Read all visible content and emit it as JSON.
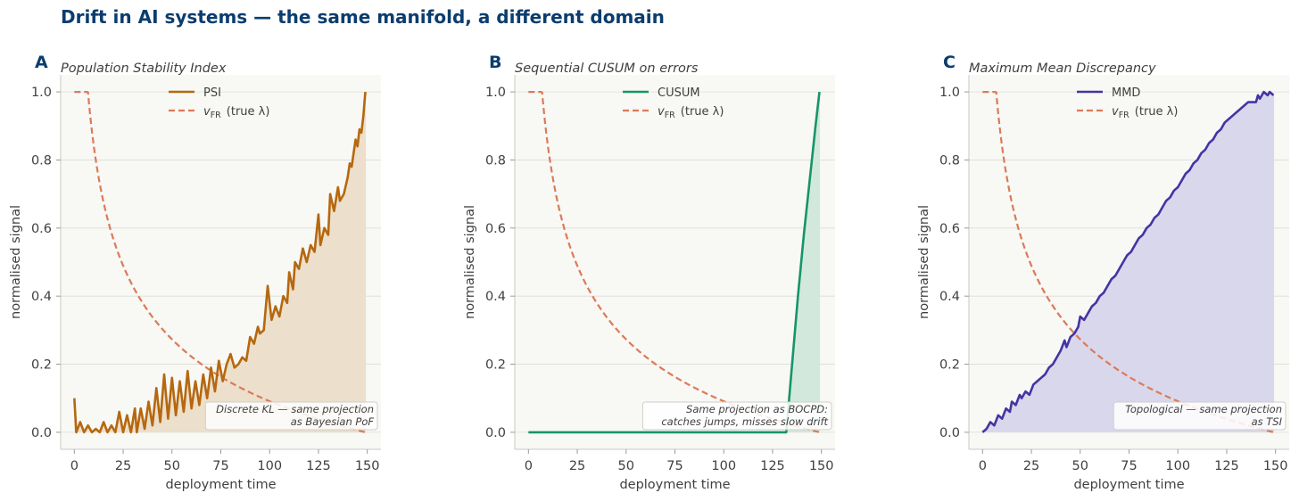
{
  "suptitle": "Drift in AI systems — the same manifold, a different domain",
  "colors": {
    "ref": "#dc7a58",
    "grid": "#dcdcd6",
    "plot_bg": "#f8f8f5",
    "spine": "#c9c9c2"
  },
  "chart_data": [
    {
      "letter": "A",
      "type": "line",
      "title": "Population Stability Index",
      "xlabel": "deployment time",
      "ylabel": "normalised signal",
      "xlim": [
        -7,
        157
      ],
      "ylim": [
        -0.05,
        1.05
      ],
      "xticks": [
        0,
        25,
        50,
        75,
        100,
        125,
        150
      ],
      "xtick_labels": [
        "0",
        "25",
        "50",
        "75",
        "100",
        "125",
        "150"
      ],
      "yticks": [
        0.0,
        0.2,
        0.4,
        0.6,
        0.8,
        1.0
      ],
      "ytick_labels": [
        "0.0",
        "0.2",
        "0.4",
        "0.6",
        "0.8",
        "1.0"
      ],
      "grid": "horizontal",
      "legend": {
        "placement": "upper-center",
        "main": "PSI",
        "ref_prefix": "v",
        "ref_sub": "FR",
        "ref_suffix": "(true λ)"
      },
      "annotation": [
        "Discrete KL — same projection",
        "as Bayesian PoF"
      ],
      "series": [
        {
          "name": "PSI",
          "color": "#b5680f",
          "fill": "#ecdfcb",
          "points": [
            [
              0,
              0.1
            ],
            [
              1,
              0.0
            ],
            [
              3,
              0.03
            ],
            [
              5,
              0.0
            ],
            [
              7,
              0.02
            ],
            [
              9,
              0.0
            ],
            [
              11,
              0.01
            ],
            [
              13,
              0.0
            ],
            [
              15,
              0.03
            ],
            [
              17,
              0.0
            ],
            [
              19,
              0.02
            ],
            [
              21,
              0.0
            ],
            [
              23,
              0.06
            ],
            [
              25,
              0.0
            ],
            [
              27,
              0.05
            ],
            [
              29,
              0.0
            ],
            [
              31,
              0.07
            ],
            [
              32,
              0.0
            ],
            [
              34,
              0.07
            ],
            [
              36,
              0.01
            ],
            [
              38,
              0.09
            ],
            [
              40,
              0.02
            ],
            [
              42,
              0.13
            ],
            [
              44,
              0.03
            ],
            [
              46,
              0.17
            ],
            [
              48,
              0.04
            ],
            [
              50,
              0.16
            ],
            [
              52,
              0.05
            ],
            [
              54,
              0.15
            ],
            [
              56,
              0.06
            ],
            [
              58,
              0.18
            ],
            [
              60,
              0.07
            ],
            [
              62,
              0.15
            ],
            [
              64,
              0.08
            ],
            [
              66,
              0.17
            ],
            [
              68,
              0.1
            ],
            [
              70,
              0.19
            ],
            [
              72,
              0.12
            ],
            [
              74,
              0.21
            ],
            [
              76,
              0.15
            ],
            [
              78,
              0.2
            ],
            [
              80,
              0.23
            ],
            [
              82,
              0.19
            ],
            [
              84,
              0.2
            ],
            [
              86,
              0.22
            ],
            [
              88,
              0.21
            ],
            [
              90,
              0.28
            ],
            [
              92,
              0.26
            ],
            [
              94,
              0.31
            ],
            [
              95,
              0.29
            ],
            [
              97,
              0.3
            ],
            [
              99,
              0.43
            ],
            [
              101,
              0.33
            ],
            [
              103,
              0.37
            ],
            [
              105,
              0.34
            ],
            [
              107,
              0.4
            ],
            [
              109,
              0.38
            ],
            [
              110,
              0.47
            ],
            [
              112,
              0.42
            ],
            [
              113,
              0.5
            ],
            [
              115,
              0.48
            ],
            [
              117,
              0.54
            ],
            [
              119,
              0.5
            ],
            [
              121,
              0.55
            ],
            [
              123,
              0.53
            ],
            [
              125,
              0.64
            ],
            [
              126,
              0.55
            ],
            [
              128,
              0.6
            ],
            [
              130,
              0.58
            ],
            [
              131,
              0.7
            ],
            [
              133,
              0.65
            ],
            [
              135,
              0.72
            ],
            [
              136,
              0.68
            ],
            [
              138,
              0.7
            ],
            [
              140,
              0.75
            ],
            [
              141,
              0.79
            ],
            [
              142,
              0.78
            ],
            [
              144,
              0.86
            ],
            [
              145,
              0.84
            ],
            [
              146,
              0.89
            ],
            [
              147,
              0.88
            ],
            [
              148,
              0.93
            ],
            [
              149,
              1.0
            ]
          ]
        },
        {
          "name": "v_FR (true λ)",
          "color": "#dc7a58",
          "dashed": true,
          "fn": "vfr"
        }
      ]
    },
    {
      "letter": "B",
      "type": "line",
      "title": "Sequential CUSUM on errors",
      "xlabel": "deployment time",
      "ylabel": "normalised signal",
      "xlim": [
        -7,
        157
      ],
      "ylim": [
        -0.05,
        1.05
      ],
      "xticks": [
        0,
        25,
        50,
        75,
        100,
        125,
        150
      ],
      "xtick_labels": [
        "0",
        "25",
        "50",
        "75",
        "100",
        "125",
        "150"
      ],
      "yticks": [
        0.0,
        0.2,
        0.4,
        0.6,
        0.8,
        1.0
      ],
      "ytick_labels": [
        "0.0",
        "0.2",
        "0.4",
        "0.6",
        "0.8",
        "1.0"
      ],
      "grid": "horizontal",
      "legend": {
        "placement": "upper-center",
        "main": "CUSUM",
        "ref_prefix": "v",
        "ref_sub": "FR",
        "ref_suffix": "(true λ)"
      },
      "annotation": [
        "Same projection as BOCPD:",
        "catches jumps, misses slow drift"
      ],
      "series": [
        {
          "name": "CUSUM",
          "color": "#16946b",
          "fill": "#d3e8dd",
          "points": [
            [
              0,
              0.0
            ],
            [
              132,
              0.0
            ],
            [
              135,
              0.2
            ],
            [
              138,
              0.4
            ],
            [
              141,
              0.58
            ],
            [
              144,
              0.74
            ],
            [
              147,
              0.9
            ],
            [
              149,
              1.0
            ]
          ]
        },
        {
          "name": "v_FR (true λ)",
          "color": "#dc7a58",
          "dashed": true,
          "fn": "vfr"
        }
      ]
    },
    {
      "letter": "C",
      "type": "line",
      "title": "Maximum Mean Discrepancy",
      "xlabel": "deployment time",
      "ylabel": "normalised signal",
      "xlim": [
        -7,
        157
      ],
      "ylim": [
        -0.05,
        1.05
      ],
      "xticks": [
        0,
        25,
        50,
        75,
        100,
        125,
        150
      ],
      "xtick_labels": [
        "0",
        "25",
        "50",
        "75",
        "100",
        "125",
        "150"
      ],
      "yticks": [
        0.0,
        0.2,
        0.4,
        0.6,
        0.8,
        1.0
      ],
      "ytick_labels": [
        "0.0",
        "0.2",
        "0.4",
        "0.6",
        "0.8",
        "1.0"
      ],
      "grid": "horizontal",
      "legend": {
        "placement": "upper-center",
        "main": "MMD",
        "ref_prefix": "v",
        "ref_sub": "FR",
        "ref_suffix": "(true λ)"
      },
      "annotation": [
        "Topological — same projection",
        "as TSI"
      ],
      "series": [
        {
          "name": "MMD",
          "color": "#4434a3",
          "fill": "#d9d7ec",
          "points": [
            [
              0,
              0.0
            ],
            [
              2,
              0.01
            ],
            [
              4,
              0.03
            ],
            [
              6,
              0.02
            ],
            [
              8,
              0.05
            ],
            [
              10,
              0.04
            ],
            [
              12,
              0.07
            ],
            [
              14,
              0.06
            ],
            [
              15,
              0.09
            ],
            [
              17,
              0.08
            ],
            [
              19,
              0.11
            ],
            [
              20,
              0.1
            ],
            [
              22,
              0.12
            ],
            [
              24,
              0.11
            ],
            [
              26,
              0.14
            ],
            [
              28,
              0.15
            ],
            [
              30,
              0.16
            ],
            [
              32,
              0.17
            ],
            [
              34,
              0.19
            ],
            [
              36,
              0.2
            ],
            [
              38,
              0.22
            ],
            [
              40,
              0.24
            ],
            [
              42,
              0.27
            ],
            [
              43,
              0.25
            ],
            [
              45,
              0.28
            ],
            [
              47,
              0.29
            ],
            [
              49,
              0.31
            ],
            [
              50,
              0.34
            ],
            [
              52,
              0.33
            ],
            [
              54,
              0.35
            ],
            [
              56,
              0.37
            ],
            [
              58,
              0.38
            ],
            [
              60,
              0.4
            ],
            [
              62,
              0.41
            ],
            [
              64,
              0.43
            ],
            [
              66,
              0.45
            ],
            [
              68,
              0.46
            ],
            [
              70,
              0.48
            ],
            [
              72,
              0.5
            ],
            [
              74,
              0.52
            ],
            [
              76,
              0.53
            ],
            [
              78,
              0.55
            ],
            [
              80,
              0.57
            ],
            [
              82,
              0.58
            ],
            [
              84,
              0.6
            ],
            [
              86,
              0.61
            ],
            [
              88,
              0.63
            ],
            [
              90,
              0.64
            ],
            [
              92,
              0.66
            ],
            [
              94,
              0.68
            ],
            [
              96,
              0.69
            ],
            [
              98,
              0.71
            ],
            [
              100,
              0.72
            ],
            [
              102,
              0.74
            ],
            [
              104,
              0.76
            ],
            [
              106,
              0.77
            ],
            [
              108,
              0.79
            ],
            [
              110,
              0.8
            ],
            [
              112,
              0.82
            ],
            [
              114,
              0.83
            ],
            [
              116,
              0.85
            ],
            [
              118,
              0.86
            ],
            [
              120,
              0.88
            ],
            [
              122,
              0.89
            ],
            [
              124,
              0.91
            ],
            [
              126,
              0.92
            ],
            [
              128,
              0.93
            ],
            [
              130,
              0.94
            ],
            [
              132,
              0.95
            ],
            [
              134,
              0.96
            ],
            [
              136,
              0.97
            ],
            [
              138,
              0.97
            ],
            [
              140,
              0.97
            ],
            [
              141,
              0.99
            ],
            [
              142,
              0.98
            ],
            [
              144,
              1.0
            ],
            [
              146,
              0.99
            ],
            [
              147,
              1.0
            ],
            [
              149,
              0.99
            ]
          ]
        },
        {
          "name": "v_FR (true λ)",
          "color": "#dc7a58",
          "dashed": true,
          "fn": "vfr"
        }
      ]
    }
  ]
}
